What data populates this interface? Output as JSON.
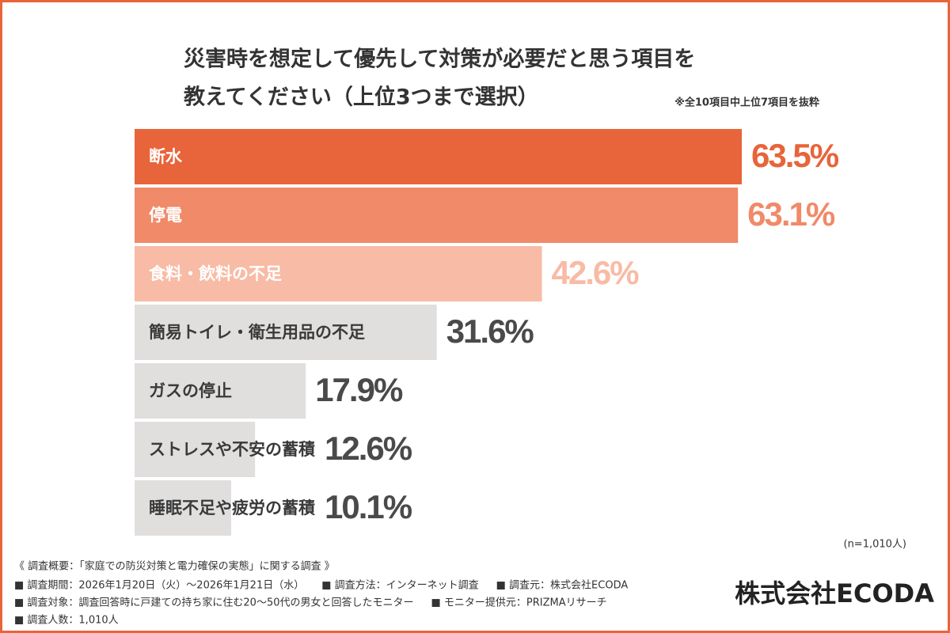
{
  "chart_data": {
    "type": "hbar",
    "title": [
      "災害時を想定して優先して対策が必要だと思う項目を",
      "教えてください（上位3つまで選択）"
    ],
    "note": "※全10項目中上位7項目を抜粋",
    "sample_size": "(n=1,010人)",
    "categories": [
      "断水",
      "停電",
      "食料・飲料の不足",
      "簡易トイレ・衛生用品の不足",
      "ガスの停止",
      "ストレスや不安の蓄積",
      "睡眠不足や疲労の蓄積"
    ],
    "values": [
      63.5,
      63.1,
      42.6,
      31.6,
      17.9,
      12.6,
      10.1
    ],
    "value_labels": [
      "63.5%",
      "63.1%",
      "42.6%",
      "31.6%",
      "17.9%",
      "12.6%",
      "10.1%"
    ],
    "colors": [
      "#e8643a",
      "#f08a68",
      "#f8bba5",
      "#e0dfde",
      "#e0dfde",
      "#e0dfde",
      "#e0dfde"
    ],
    "label_colors": [
      "#e8643a",
      "#f08a68",
      "#f8bba5",
      "#4a4a4a",
      "#4a4a4a",
      "#4a4a4a",
      "#4a4a4a"
    ],
    "category_colors": [
      "#ffffff",
      "#ffffff",
      "#ffffff",
      "#3a3a3a",
      "#3a3a3a",
      "#3a3a3a",
      "#3a3a3a"
    ]
  },
  "footer": {
    "heading": "《 調査概要：「家庭での防災対策と電力確保の実態」に関する調査 》",
    "lines": [
      [
        "■ 調査期間：2026年1月20日（火）〜2026年1月21日（水）",
        "■ 調査方法：インターネット調査",
        "■ 調査元：株式会社ECODA"
      ],
      [
        "■ 調査対象：調査回答時に戸建ての持ち家に住む20〜50代の男女と回答したモニター",
        "■ モニター提供元：PRIZMAリサーチ"
      ],
      [
        "■ 調査人数：1,010人"
      ]
    ]
  },
  "logo": "株式会社ECODA"
}
